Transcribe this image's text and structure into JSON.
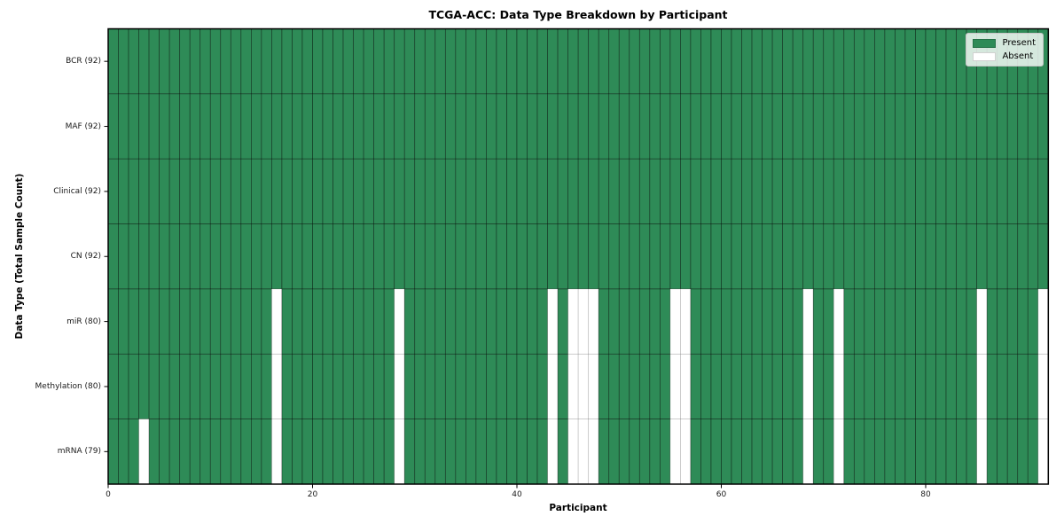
{
  "chart_data": {
    "type": "heatmap",
    "title": "TCGA-ACC: Data Type Breakdown by Participant",
    "xlabel": "Participant",
    "ylabel": "Data Type (Total Sample Count)",
    "n_participants": 92,
    "x_axis_range": [
      0,
      92
    ],
    "x_ticks": [
      0,
      20,
      40,
      60,
      80
    ],
    "grid": true,
    "legend_position": "upper right",
    "colors": {
      "present": "#2e8b57",
      "absent": "#ffffff"
    },
    "rows": [
      {
        "label": "BCR",
        "total": 92,
        "absent_participants": []
      },
      {
        "label": "MAF",
        "total": 92,
        "absent_participants": []
      },
      {
        "label": "Clinical",
        "total": 92,
        "absent_participants": []
      },
      {
        "label": "CN",
        "total": 92,
        "absent_participants": []
      },
      {
        "label": "miR",
        "total": 80,
        "absent_participants": [
          16,
          28,
          43,
          45,
          46,
          47,
          55,
          56,
          68,
          71,
          85,
          91
        ]
      },
      {
        "label": "Methylation",
        "total": 80,
        "absent_participants": [
          16,
          28,
          43,
          45,
          46,
          47,
          55,
          56,
          68,
          71,
          85,
          91
        ]
      },
      {
        "label": "mRNA",
        "total": 79,
        "absent_participants": [
          3,
          16,
          28,
          43,
          45,
          46,
          47,
          55,
          56,
          68,
          71,
          85,
          91
        ]
      }
    ],
    "legend": {
      "items": [
        {
          "label": "Present",
          "color": "#2e8b57"
        },
        {
          "label": "Absent",
          "color": "#ffffff"
        }
      ]
    }
  }
}
